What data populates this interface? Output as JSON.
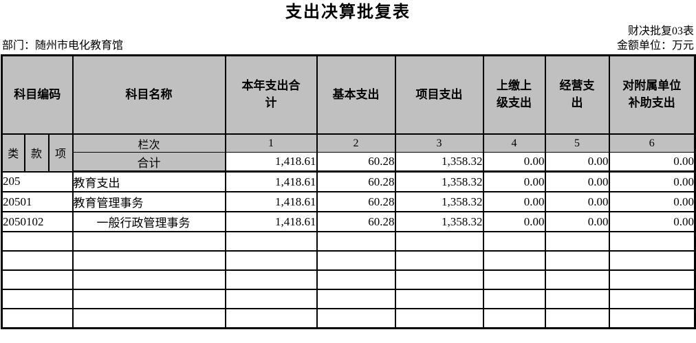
{
  "page": {
    "title": "支出决算批复表",
    "form_code": "财决批复03表",
    "department": "部门：随州市电化教育馆",
    "unit": "金额单位：万元"
  },
  "table": {
    "header": {
      "subject_code": "科目编码",
      "subject_name": "科目名称",
      "value_columns": [
        "本年支出合计",
        "基本支出",
        "项目支出",
        "上缴上级支出",
        "经营支出",
        "对附属单位补助支出"
      ],
      "code_subcolumns": [
        "类",
        "款",
        "项"
      ],
      "column_index_label": "栏次",
      "column_indexes": [
        "1",
        "2",
        "3",
        "4",
        "5",
        "6"
      ]
    },
    "total_row": {
      "label": "合计",
      "values": [
        "1,418.61",
        "60.28",
        "1,358.32",
        "0.00",
        "0.00",
        "0.00"
      ]
    },
    "rows": [
      {
        "code": "205",
        "name": "教育支出",
        "values": [
          "1,418.61",
          "60.28",
          "1,358.32",
          "0.00",
          "0.00",
          "0.00"
        ]
      },
      {
        "code": "20501",
        "name": "教育管理事务",
        "values": [
          "1,418.61",
          "60.28",
          "1,358.32",
          "0.00",
          "0.00",
          "0.00"
        ]
      },
      {
        "code": "2050102",
        "name": "　　一般行政管理事务",
        "values": [
          "1,418.61",
          "60.28",
          "1,358.32",
          "0.00",
          "0.00",
          "0.00"
        ]
      }
    ],
    "empty_row_count": 5
  },
  "colors": {
    "header_bg": "#c0c0c0",
    "border": "#000000",
    "background": "#ffffff"
  }
}
